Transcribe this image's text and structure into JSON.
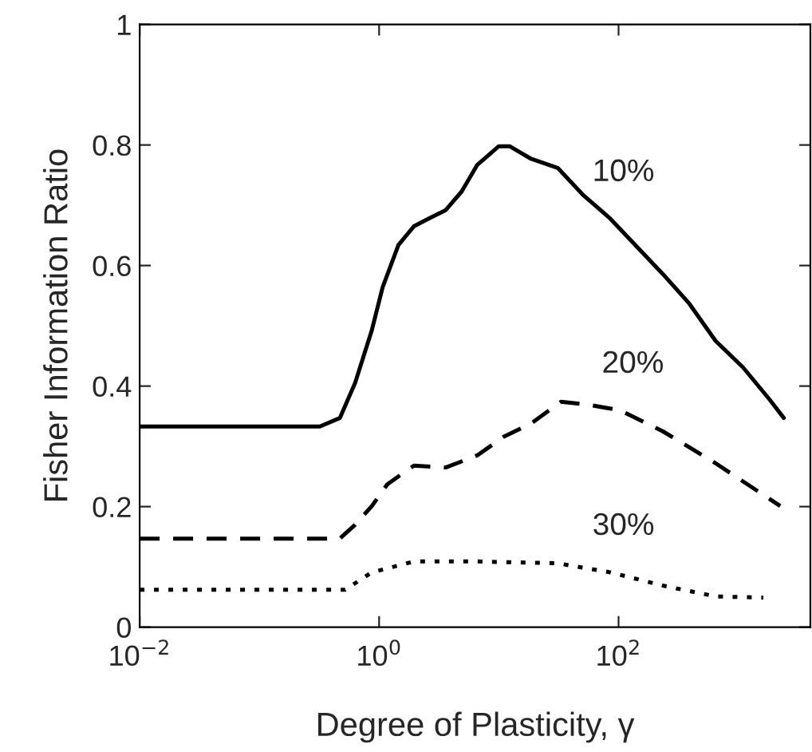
{
  "chart_data": {
    "type": "line",
    "xlabel": "Degree of Plasticity, γ",
    "ylabel": "Fisher Information Ratio",
    "log": "x",
    "xlim": [
      0.01,
      4000
    ],
    "xticks": [
      {
        "value": 0.01,
        "label": "10$^{−2}$"
      },
      {
        "value": 1,
        "label": "10$^{0}$"
      },
      {
        "value": 100,
        "label": "10$^{2}$"
      }
    ],
    "ylim": [
      0,
      1
    ],
    "yticks": [
      0,
      0.2,
      0.4,
      0.6,
      0.8,
      1
    ],
    "grid": false,
    "legend": false,
    "series": [
      {
        "name": "10%",
        "color": "#000000",
        "line_style": "solid",
        "x": [
          0.01,
          0.32,
          0.47,
          0.63,
          0.87,
          1.07,
          1.45,
          1.95,
          2.6,
          3.6,
          4.9,
          6.6,
          10,
          12.3,
          18.6,
          31,
          50,
          85,
          138,
          234,
          389,
          646,
          1096,
          1820,
          2400
        ],
        "values": [
          0.333,
          0.333,
          0.347,
          0.405,
          0.493,
          0.564,
          0.634,
          0.665,
          0.678,
          0.692,
          0.723,
          0.767,
          0.798,
          0.798,
          0.777,
          0.762,
          0.718,
          0.678,
          0.634,
          0.586,
          0.537,
          0.475,
          0.431,
          0.378,
          0.347
        ]
      },
      {
        "name": "20%",
        "color": "#000000",
        "line_style": "dashed",
        "x": [
          0.01,
          0.47,
          0.63,
          0.87,
          1.17,
          1.95,
          3.6,
          6.6,
          11,
          18.6,
          33,
          56,
          102,
          234,
          646,
          2240
        ],
        "values": [
          0.147,
          0.147,
          0.17,
          0.201,
          0.237,
          0.268,
          0.265,
          0.285,
          0.316,
          0.338,
          0.374,
          0.369,
          0.36,
          0.325,
          0.272,
          0.201
        ]
      },
      {
        "name": "30%",
        "color": "#000000",
        "line_style": "dotted",
        "x": [
          0.01,
          0.52,
          0.87,
          1.95,
          6.6,
          31,
          85,
          234,
          646,
          1620
        ],
        "values": [
          0.062,
          0.062,
          0.091,
          0.109,
          0.109,
          0.106,
          0.091,
          0.069,
          0.051,
          0.049
        ]
      }
    ]
  }
}
